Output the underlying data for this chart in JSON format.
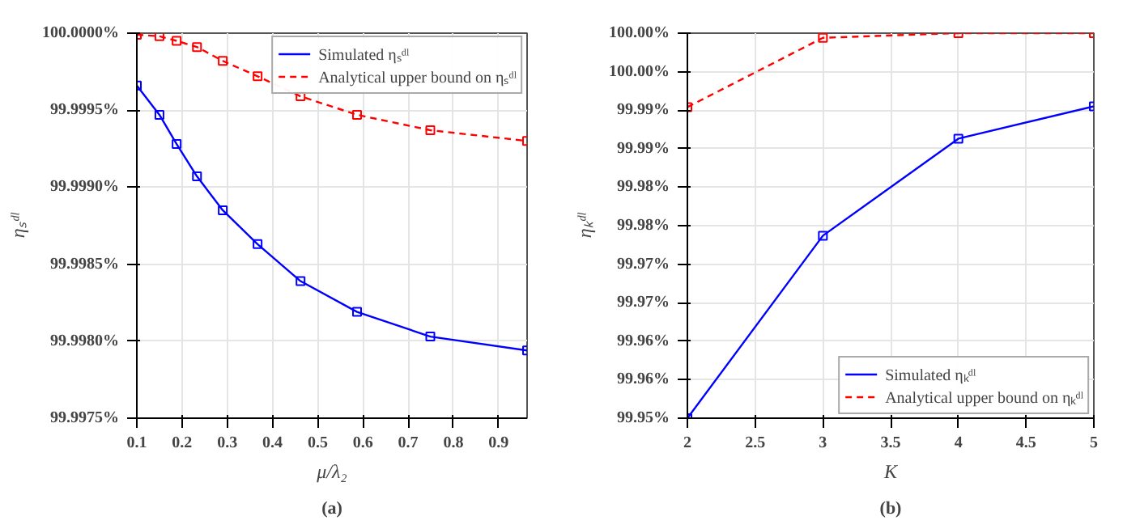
{
  "chart_data": [
    {
      "type": "line",
      "xlabel": "μ/λ₂",
      "ylabel": "ηₛᵈˡ",
      "annotations": [
        "(a)"
      ],
      "x": [
        0.1,
        0.15,
        0.188,
        0.233,
        0.29,
        0.367,
        0.462,
        0.587,
        0.749,
        0.963
      ],
      "series": [
        {
          "name": "Simulated ηₛᵈˡ",
          "color": "#0000ff",
          "line_style": "solid",
          "values": [
            99.99966,
            99.99947,
            99.99928,
            99.99907,
            99.99885,
            99.99863,
            99.99839,
            99.99819,
            99.99803,
            99.99794
          ]
        },
        {
          "name": "Analytical upper bound on ηₛᵈˡ",
          "color": "#ff0000",
          "line_style": "dashed",
          "values": [
            99.99999,
            99.99998,
            99.99995,
            99.99991,
            99.99982,
            99.99972,
            99.99959,
            99.99947,
            99.99937,
            99.9993
          ]
        }
      ],
      "xlim": [
        0.1,
        0.963
      ],
      "xticks": [
        0.1,
        0.2,
        0.3,
        0.4,
        0.5,
        0.6,
        0.7,
        0.8,
        0.9
      ],
      "ylim": [
        99.9975,
        100.0
      ],
      "yticks": [
        {
          "value": 99.9975,
          "label": "99.9975%"
        },
        {
          "value": 99.998,
          "label": "99.9980%"
        },
        {
          "value": 99.9985,
          "label": "99.9985%"
        },
        {
          "value": 99.999,
          "label": "99.9990%"
        },
        {
          "value": 99.9995,
          "label": "99.9995%"
        },
        {
          "value": 100.0,
          "label": "100.0000%"
        }
      ],
      "grid": true,
      "legend": "top right",
      "marker": "square"
    },
    {
      "type": "line",
      "xlabel": "K",
      "ylabel": "ηₖᵈˡ",
      "annotations": [
        "(b)"
      ],
      "x": [
        2,
        3,
        4,
        5
      ],
      "series": [
        {
          "name": "Simulated ηₖᵈˡ",
          "color": "#0000ff",
          "line_style": "solid",
          "values": [
            99.95,
            99.9737,
            99.9863,
            99.9905
          ]
        },
        {
          "name": "Analytical upper bound on ηₖᵈˡ",
          "color": "#ff0000",
          "line_style": "dashed",
          "values": [
            99.9904,
            99.9994,
            100.0,
            100.0
          ]
        }
      ],
      "xlim": [
        2,
        5
      ],
      "xticks": [
        2,
        2.5,
        3,
        3.5,
        4,
        4.5,
        5
      ],
      "ylim": [
        99.95,
        100.0
      ],
      "yticks": [
        {
          "value": 99.95,
          "label": "99.95%"
        },
        {
          "value": 99.955,
          "label": "99.96%"
        },
        {
          "value": 99.96,
          "label": "99.96%"
        },
        {
          "value": 99.965,
          "label": "99.97%"
        },
        {
          "value": 99.97,
          "label": "99.97%"
        },
        {
          "value": 99.975,
          "label": "99.98%"
        },
        {
          "value": 99.98,
          "label": "99.98%"
        },
        {
          "value": 99.985,
          "label": "99.99%"
        },
        {
          "value": 99.99,
          "label": "99.99%"
        },
        {
          "value": 99.995,
          "label": "100.00%"
        },
        {
          "value": 100.0,
          "label": "100.00%"
        }
      ],
      "grid": true,
      "legend": "bottom right",
      "marker": "square"
    }
  ]
}
